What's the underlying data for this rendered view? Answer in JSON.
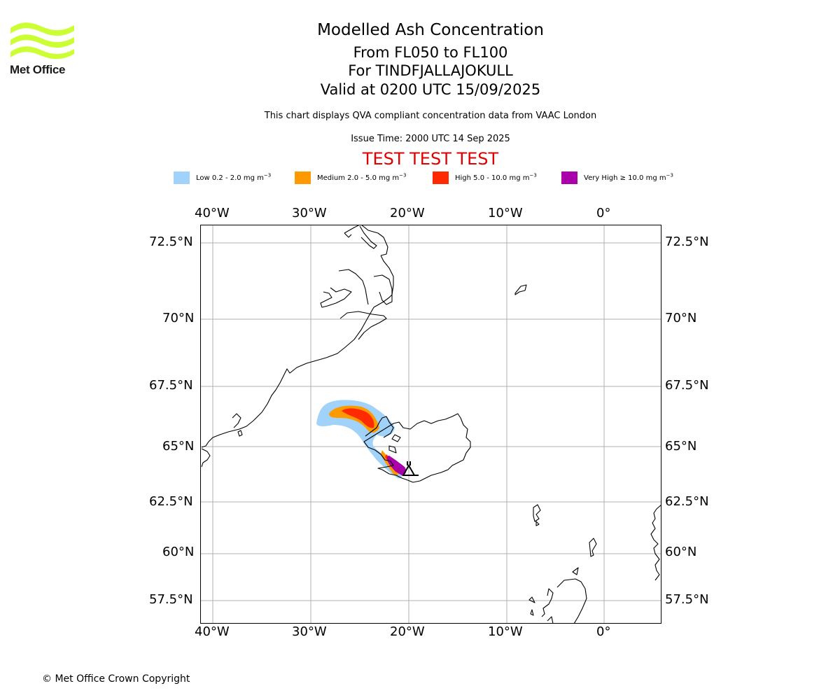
{
  "logo": {
    "text": "Met Office",
    "color": "#ccff33"
  },
  "title": {
    "main": "Modelled Ash Concentration",
    "levels": "From FL050 to FL100",
    "volcano": "For TINDFJALLAJOKULL",
    "valid": "Valid at 0200 UTC 15/09/2025",
    "source_note": "This chart displays QVA compliant concentration data from VAAC London",
    "issue_time": "Issue Time: 2000 UTC 14 Sep 2025",
    "test_banner": "TEST TEST TEST"
  },
  "legend": [
    {
      "label": "Low 0.2 - 2.0 mg m",
      "exp": "−3",
      "color": "#a0d2fa"
    },
    {
      "label": "Medium 2.0 - 5.0 mg m",
      "exp": "−3",
      "color": "#ff9900"
    },
    {
      "label": "High 5.0 - 10.0 mg m",
      "exp": "−3",
      "color": "#ff2a00"
    },
    {
      "label": "Very High  ≥  10.0 mg m",
      "exp": "−3",
      "color": "#aa00aa"
    }
  ],
  "axes": {
    "lon_labels": [
      "40°W",
      "30°W",
      "20°W",
      "10°W",
      "0°"
    ],
    "lat_labels": [
      "72.5°N",
      "70°N",
      "67.5°N",
      "65°N",
      "62.5°N",
      "60°N",
      "57.5°N"
    ]
  },
  "map": {
    "volcano_marker": "triangle",
    "coastline_color": "#000000",
    "grid_color": "#b0b0b0"
  },
  "footer": "© Met Office Crown Copyright"
}
